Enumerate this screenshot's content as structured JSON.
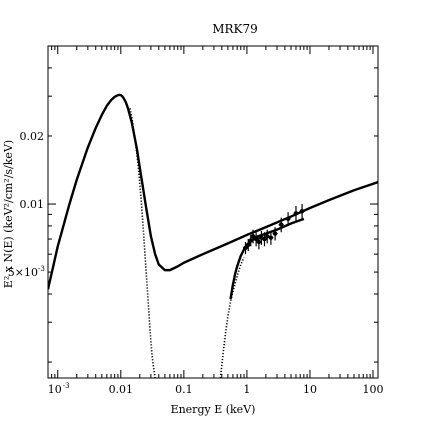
{
  "chart_data": {
    "type": "scatter",
    "title": "MRK79",
    "xlabel": "Energy E (keV)",
    "ylabel": "E² x N(E) (keV²/cm²/s/keV)",
    "xscale": "log",
    "yscale": "log",
    "xlim": [
      0.0007,
      120
    ],
    "ylim": [
      0.0017,
      0.05
    ],
    "grid": false,
    "x_ticks": [
      {
        "value": 0.001,
        "label": "10",
        "sup": "-3"
      },
      {
        "value": 0.01,
        "label": "0.01",
        "sup": ""
      },
      {
        "value": 0.1,
        "label": "0.1",
        "sup": ""
      },
      {
        "value": 1,
        "label": "1",
        "sup": ""
      },
      {
        "value": 10,
        "label": "10",
        "sup": ""
      },
      {
        "value": 100,
        "label": "100",
        "sup": ""
      }
    ],
    "y_ticks": [
      {
        "value": 0.005,
        "label": "5×10",
        "sup": "-3"
      },
      {
        "value": 0.01,
        "label": "0.01",
        "sup": ""
      },
      {
        "value": 0.02,
        "label": "0.02",
        "sup": ""
      }
    ],
    "series": [
      {
        "style": "thick-curve",
        "x": [
          0.0007,
          0.001,
          0.0015,
          0.002,
          0.003,
          0.004,
          0.005,
          0.006,
          0.007,
          0.008,
          0.009,
          0.0095,
          0.01,
          0.0105,
          0.011,
          0.012,
          0.013,
          0.015,
          0.018,
          0.02,
          0.025,
          0.03,
          0.035,
          0.04,
          0.05,
          0.06,
          0.08,
          0.1,
          0.2,
          0.5,
          1,
          2,
          5,
          10,
          20,
          50,
          120
        ],
        "y": [
          0.0042,
          0.0065,
          0.0098,
          0.0128,
          0.0178,
          0.0217,
          0.0248,
          0.0272,
          0.0288,
          0.0298,
          0.0303,
          0.0304,
          0.0303,
          0.03,
          0.0295,
          0.0282,
          0.0265,
          0.0228,
          0.0175,
          0.0145,
          0.0098,
          0.0072,
          0.006,
          0.0054,
          0.0051,
          0.0051,
          0.0053,
          0.0055,
          0.006,
          0.0067,
          0.0073,
          0.0079,
          0.0088,
          0.0096,
          0.0104,
          0.0115,
          0.0125
        ]
      },
      {
        "style": "dotted-curve",
        "x": [
          0.014,
          0.015,
          0.017,
          0.019,
          0.021,
          0.023,
          0.025,
          0.027,
          0.029,
          0.031,
          0.033,
          0.035
        ],
        "y": [
          0.0265,
          0.024,
          0.019,
          0.0145,
          0.0105,
          0.0074,
          0.0052,
          0.0038,
          0.0028,
          0.0022,
          0.0019,
          0.0017
        ]
      },
      {
        "style": "dotted-curve",
        "x": [
          0.38,
          0.42,
          0.46,
          0.5,
          0.55,
          0.6,
          0.7,
          0.8,
          0.9
        ],
        "y": [
          0.0017,
          0.0022,
          0.0027,
          0.0032,
          0.0037,
          0.0041,
          0.0048,
          0.0054,
          0.0058
        ]
      },
      {
        "style": "thick-curve",
        "x": [
          0.55,
          0.6,
          0.65,
          0.7,
          0.8,
          0.9,
          1.0,
          1.2,
          1.5,
          2,
          3,
          5,
          8
        ],
        "y": [
          0.0038,
          0.0044,
          0.0049,
          0.0053,
          0.0059,
          0.0063,
          0.0066,
          0.0069,
          0.0072,
          0.0074,
          0.0077,
          0.0082,
          0.0086
        ]
      },
      {
        "style": "points",
        "x": [
          0.95,
          1.05,
          1.15,
          1.25,
          1.4,
          1.55,
          1.7,
          1.9,
          2.1,
          2.4,
          2.8,
          3.5,
          4.5,
          6.0,
          7.5
        ],
        "y": [
          0.0064,
          0.0066,
          0.0069,
          0.0072,
          0.007,
          0.0068,
          0.0071,
          0.007,
          0.0072,
          0.0071,
          0.0074,
          0.0081,
          0.0086,
          0.0091,
          0.0093
        ],
        "err": [
          0.0004,
          0.0004,
          0.0004,
          0.0005,
          0.0005,
          0.0005,
          0.0005,
          0.0005,
          0.0005,
          0.0005,
          0.0005,
          0.0006,
          0.0006,
          0.0007,
          0.0007
        ]
      }
    ]
  }
}
